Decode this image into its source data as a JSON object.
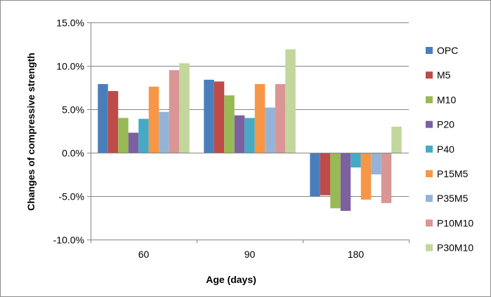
{
  "chart_data": {
    "type": "bar",
    "title": "",
    "xlabel": "Age (days)",
    "ylabel": "Changes of compressive strength",
    "categories": [
      "60",
      "90",
      "180"
    ],
    "ylim": [
      -10,
      15
    ],
    "y_ticks": [
      -10,
      -5,
      0,
      5,
      10,
      15
    ],
    "y_tick_labels": [
      "-10.0%",
      "-5.0%",
      "0.0%",
      "5.0%",
      "10.0%",
      "15.0%"
    ],
    "grid": true,
    "legend_position": "right",
    "series": [
      {
        "name": "OPC",
        "color": "#4a7ebb",
        "values": [
          7.9,
          8.4,
          -5.0
        ]
      },
      {
        "name": "M5",
        "color": "#be4b48",
        "values": [
          7.1,
          8.2,
          -4.9
        ]
      },
      {
        "name": "M10",
        "color": "#98b954",
        "values": [
          4.0,
          6.6,
          -6.4
        ]
      },
      {
        "name": "P20",
        "color": "#7d60a0",
        "values": [
          2.3,
          4.3,
          -6.7
        ]
      },
      {
        "name": "P40",
        "color": "#46aac5",
        "values": [
          3.9,
          4.0,
          -1.7
        ]
      },
      {
        "name": "P15M5",
        "color": "#f79646",
        "values": [
          7.6,
          7.9,
          -5.4
        ]
      },
      {
        "name": "P35M5",
        "color": "#95b3d7",
        "values": [
          4.7,
          5.2,
          -2.5
        ]
      },
      {
        "name": "P10M10",
        "color": "#d99694",
        "values": [
          9.5,
          7.9,
          -5.8
        ]
      },
      {
        "name": "P30M10",
        "color": "#c3d69b",
        "values": [
          10.3,
          11.9,
          3.0
        ]
      }
    ]
  }
}
